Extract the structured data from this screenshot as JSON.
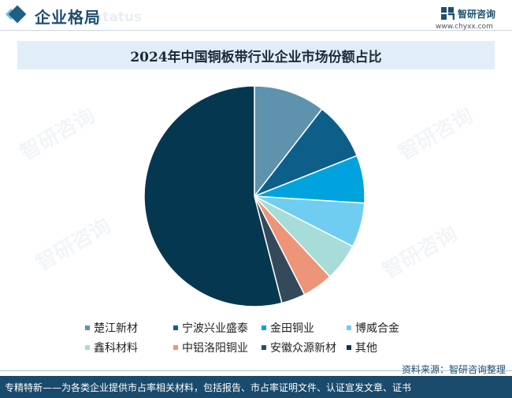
{
  "header": {
    "title": "企业格局",
    "ghost": "status"
  },
  "logo": {
    "name": "智研咨询",
    "url": "www.chyxx.com",
    "icon": "zhiyan-logo-icon"
  },
  "watermark": "智研咨询",
  "chart_data": {
    "type": "pie",
    "title": "2024年中国铜板带行业企业市场份额占比",
    "series": [
      {
        "name": "楚江新材",
        "value": 10.5,
        "color": "#5f92ad"
      },
      {
        "name": "宁波兴业盛泰",
        "value": 8.5,
        "color": "#0d5f8a"
      },
      {
        "name": "金田铜业",
        "value": 7.0,
        "color": "#00a3de"
      },
      {
        "name": "博威合金",
        "value": 6.5,
        "color": "#6fcdf2"
      },
      {
        "name": "鑫科材料",
        "value": 5.5,
        "color": "#a7dcd8"
      },
      {
        "name": "中铝洛阳铜业",
        "value": 4.5,
        "color": "#ee9479"
      },
      {
        "name": "安徽众源新材",
        "value": 3.5,
        "color": "#344a5c"
      },
      {
        "name": "其他",
        "value": 54.0,
        "color": "#063750"
      }
    ],
    "legend_position": "bottom"
  },
  "source": "资料来源：智研咨询整理",
  "footer": "专精特新——为各类企业提供市占率相关材料，包括报告、市占率证明文件、认证宣发文章、证书"
}
